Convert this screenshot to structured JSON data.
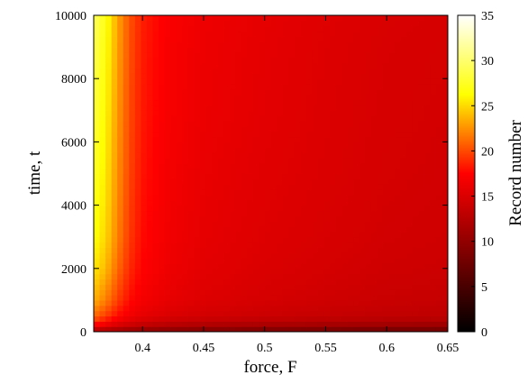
{
  "chart_data": {
    "type": "heatmap",
    "title": "",
    "xlabel": "force, F",
    "ylabel": "time, t",
    "colorbar_label": "Record number",
    "xlim": [
      0.36,
      0.65
    ],
    "ylim": [
      0,
      10000
    ],
    "color_range": [
      0,
      35
    ],
    "colormap": [
      "#000000",
      "#800000",
      "#ff0000",
      "#ffff00",
      "#ffffff"
    ],
    "x_ticks": [
      {
        "value": 0.4,
        "label": "0.4"
      },
      {
        "value": 0.45,
        "label": "0.45"
      },
      {
        "value": 0.5,
        "label": "0.5"
      },
      {
        "value": 0.55,
        "label": "0.55"
      },
      {
        "value": 0.6,
        "label": "0.6"
      },
      {
        "value": 0.65,
        "label": "0.65"
      }
    ],
    "y_ticks": [
      {
        "value": 0,
        "label": "0"
      },
      {
        "value": 2000,
        "label": "2000"
      },
      {
        "value": 4000,
        "label": "4000"
      },
      {
        "value": 6000,
        "label": "6000"
      },
      {
        "value": 8000,
        "label": "8000"
      },
      {
        "value": 10000,
        "label": "10000"
      }
    ],
    "colorbar_ticks": [
      {
        "value": 0,
        "label": "0"
      },
      {
        "value": 5,
        "label": "5"
      },
      {
        "value": 10,
        "label": "10"
      },
      {
        "value": 15,
        "label": "15"
      },
      {
        "value": 20,
        "label": "20"
      },
      {
        "value": 25,
        "label": "25"
      },
      {
        "value": 30,
        "label": "30"
      },
      {
        "value": 35,
        "label": "35"
      }
    ],
    "x": [
      0.36,
      0.37,
      0.38,
      0.39,
      0.4,
      0.42,
      0.45,
      0.5,
      0.55,
      0.6,
      0.65
    ],
    "y": [
      0,
      150,
      300,
      500,
      1000,
      2000,
      3000,
      5000,
      7000,
      9000,
      10000
    ],
    "z": [
      [
        11.0,
        10.5,
        10.0,
        9.6,
        9.3,
        8.9,
        8.5,
        8.1,
        7.8,
        7.5,
        7.3
      ],
      [
        15.5,
        14.5,
        13.5,
        12.7,
        12.0,
        11.3,
        10.7,
        10.1,
        9.7,
        9.4,
        9.2
      ],
      [
        19.0,
        17.5,
        16.0,
        15.0,
        14.3,
        13.5,
        13.0,
        12.6,
        12.3,
        12.0,
        11.8
      ],
      [
        21.0,
        19.5,
        17.8,
        16.6,
        15.8,
        15.0,
        14.4,
        13.9,
        13.5,
        13.2,
        13.0
      ],
      [
        23.5,
        21.8,
        19.5,
        17.8,
        16.8,
        15.9,
        15.2,
        14.6,
        14.2,
        13.8,
        13.6
      ],
      [
        25.5,
        23.8,
        21.0,
        18.8,
        17.5,
        16.4,
        15.6,
        15.0,
        14.6,
        14.2,
        14.0
      ],
      [
        26.5,
        24.8,
        21.8,
        19.3,
        17.8,
        16.6,
        15.8,
        15.2,
        14.8,
        14.4,
        14.2
      ],
      [
        27.5,
        25.5,
        22.3,
        19.7,
        18.1,
        16.8,
        16.0,
        15.4,
        15.0,
        14.6,
        14.4
      ],
      [
        28.3,
        26.0,
        22.6,
        19.9,
        18.3,
        17.0,
        16.2,
        15.6,
        15.1,
        14.7,
        14.5
      ],
      [
        29.0,
        26.5,
        22.9,
        20.1,
        18.4,
        17.1,
        16.3,
        15.7,
        15.2,
        14.8,
        14.6
      ],
      [
        29.5,
        26.8,
        23.0,
        20.2,
        18.5,
        17.2,
        16.4,
        15.8,
        15.3,
        14.9,
        14.7
      ]
    ]
  }
}
